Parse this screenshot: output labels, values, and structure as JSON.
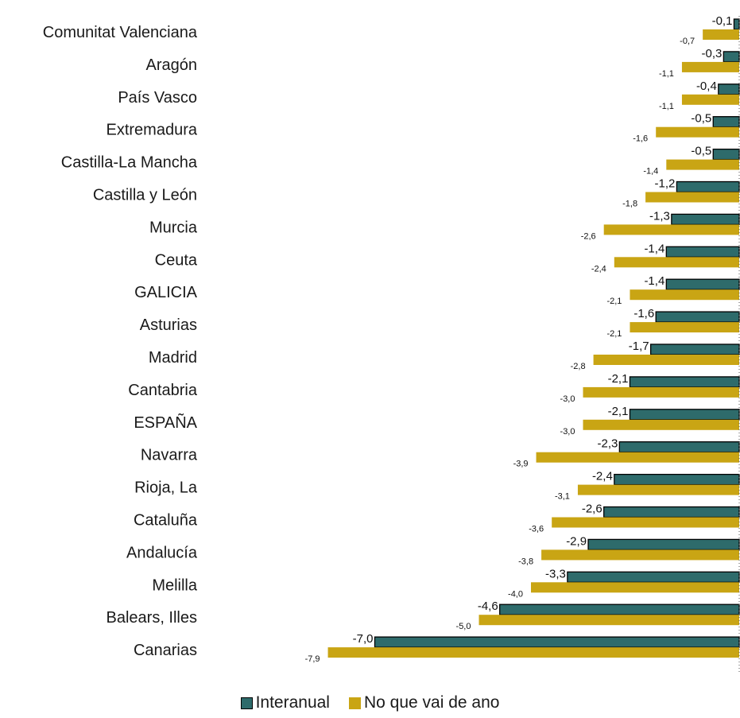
{
  "chart_data": {
    "type": "bar",
    "orientation": "horizontal",
    "categories": [
      "Comunitat Valenciana",
      "Aragón",
      "País Vasco",
      "Extremadura",
      "Castilla-La Mancha",
      "Castilla y León",
      "Murcia",
      "Ceuta",
      "GALICIA",
      "Asturias",
      "Madrid",
      "Cantabria",
      "ESPAÑA",
      "Navarra",
      "Rioja, La",
      "Cataluña",
      "Andalucía",
      "Melilla",
      "Balears, Illes",
      "Canarias"
    ],
    "series": [
      {
        "name": "Interanual",
        "color": "#2e6b6b",
        "values": [
          -0.1,
          -0.3,
          -0.4,
          -0.5,
          -0.5,
          -1.2,
          -1.3,
          -1.4,
          -1.4,
          -1.6,
          -1.7,
          -2.1,
          -2.1,
          -2.3,
          -2.4,
          -2.6,
          -2.9,
          -3.3,
          -4.6,
          -7.0
        ],
        "labels": [
          "-0,1",
          "-0,3",
          "-0,4",
          "-0,5",
          "-0,5",
          "-1,2",
          "-1,3",
          "-1,4",
          "-1,4",
          "-1,6",
          "-1,7",
          "-2,1",
          "-2,1",
          "-2,3",
          "-2,4",
          "-2,6",
          "-2,9",
          "-3,3",
          "-4,6",
          "-7,0"
        ]
      },
      {
        "name": "No que vai de ano",
        "color": "#c9a514",
        "values": [
          -0.7,
          -1.1,
          -1.1,
          -1.6,
          -1.4,
          -1.8,
          -2.6,
          -2.4,
          -2.1,
          -2.1,
          -2.8,
          -3.0,
          -3.0,
          -3.9,
          -3.1,
          -3.6,
          -3.8,
          -4.0,
          -5.0,
          -7.9
        ],
        "labels": [
          "-0,7",
          "-1,1",
          "-1,1",
          "-1,6",
          "-1,4",
          "-1,8",
          "-2,6",
          "-2,4",
          "-2,1",
          "-2,1",
          "-2,8",
          "-3,0",
          "-3,0",
          "-3,9",
          "-3,1",
          "-3,6",
          "-3,8",
          "-4,0",
          "-5,0",
          "-7,9"
        ]
      }
    ],
    "xlim": [
      -7.9,
      0
    ],
    "legend_position": "bottom",
    "grid": false
  },
  "legend": {
    "series_1": "Interanual",
    "series_2": "No que vai de ano"
  }
}
